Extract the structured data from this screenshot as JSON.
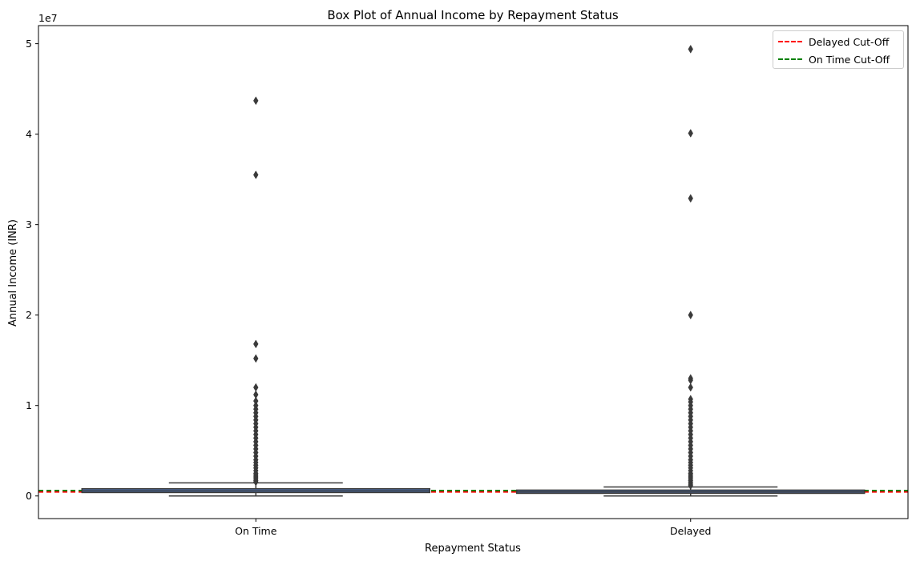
{
  "chart_data": {
    "type": "box",
    "title": "Box Plot of Annual Income by Repayment Status",
    "xlabel": "Repayment Status",
    "ylabel": "Annual Income (INR)",
    "y_offset_label": "1e7",
    "ylim": [
      -2500000,
      52000000
    ],
    "yticks": [
      0,
      10000000,
      20000000,
      30000000,
      40000000,
      50000000
    ],
    "ytick_labels": [
      "0",
      "1",
      "2",
      "3",
      "4",
      "5"
    ],
    "grid": false,
    "legend_position": "upper right",
    "categories": [
      "On Time",
      "Delayed"
    ],
    "boxes": [
      {
        "category": "On Time",
        "whisker_low": 0,
        "q1": 380000,
        "median": 560000,
        "q3": 800000,
        "whisker_high": 1450000,
        "outliers": [
          43700000,
          35500000,
          16800000,
          15200000,
          12000000,
          11200000,
          10500000,
          10000000,
          9600000,
          9200000,
          8800000,
          8400000,
          8000000,
          7600000,
          7200000,
          6800000,
          6400000,
          6000000,
          5600000,
          5200000,
          4800000,
          4400000,
          4000000,
          3700000,
          3400000,
          3100000,
          2800000,
          2500000,
          2300000,
          2100000,
          1900000,
          1700000,
          1550000
        ]
      },
      {
        "category": "Delayed",
        "whisker_low": 0,
        "q1": 290000,
        "median": 450000,
        "q3": 650000,
        "whisker_high": 1000000,
        "outliers": [
          49400000,
          40100000,
          32900000,
          20000000,
          13000000,
          12800000,
          12000000,
          10700000,
          10400000,
          10000000,
          9600000,
          9200000,
          8800000,
          8400000,
          8000000,
          7600000,
          7200000,
          6800000,
          6400000,
          6000000,
          5600000,
          5200000,
          4800000,
          4400000,
          4000000,
          3700000,
          3400000,
          3100000,
          2800000,
          2500000,
          2300000,
          2100000,
          1900000,
          1700000,
          1500000,
          1300000,
          1150000
        ]
      }
    ],
    "reference_lines": [
      {
        "name": "Delayed Cut-Off",
        "value": 450000,
        "color": "#ff0000",
        "style": "dashed"
      },
      {
        "name": "On Time Cut-Off",
        "value": 600000,
        "color": "#008000",
        "style": "dashed"
      }
    ],
    "box_color": "#3a3a3a"
  }
}
